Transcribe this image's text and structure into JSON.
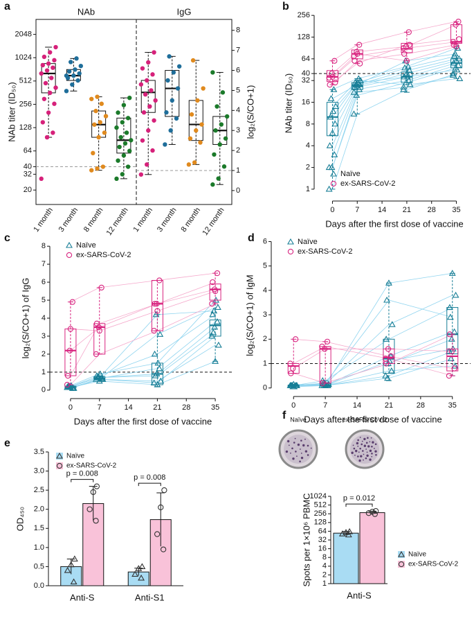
{
  "chart_data": [
    {
      "type": "box",
      "panel_label": "a",
      "categories": [
        "1 month",
        "3 month",
        "8 month",
        "12 month"
      ],
      "y_label": "NAb titer (ID₅₀)",
      "y2_label": "log₂(S/CO+1)",
      "log_scale": true,
      "ylim": [
        16,
        2600
      ],
      "yticks": [
        20,
        32,
        40,
        64,
        128,
        256,
        512,
        1024,
        2048
      ],
      "y2lim": [
        -0.35,
        8.2
      ],
      "y2ticks": [
        0,
        1,
        2,
        3,
        4,
        5,
        6,
        7,
        8
      ],
      "groups": [
        {
          "name": "NAb",
          "axis": "y",
          "reference_line": 40,
          "series": [
            {
              "name": "1 month",
              "color": "#d6217a",
              "values": [
                28,
                96,
                110,
                150,
                200,
                260,
                300,
                360,
                420,
                480,
                560,
                640,
                700,
                760,
                820,
                860,
                950,
                1050,
                1200,
                1400
              ],
              "box": [
                96,
                360,
                640,
                860,
                1400
              ]
            },
            {
              "name": "3 month",
              "color": "#1f6e9a",
              "values": [
                380,
                460,
                520,
                560,
                600,
                640,
                680,
                720,
                800,
                900,
                1000,
                600
              ],
              "box": [
                380,
                520,
                600,
                720,
                1000
              ]
            },
            {
              "name": "8 month",
              "color": "#e08a1e",
              "values": [
                36,
                38,
                40,
                60,
                96,
                110,
                140,
                150,
                180,
                210,
                260,
                300,
                320
              ],
              "box": [
                36,
                96,
                140,
                210,
                320
              ]
            },
            {
              "name": "12 month",
              "color": "#1b7a2a",
              "values": [
                28,
                32,
                40,
                48,
                56,
                64,
                72,
                80,
                88,
                96,
                110,
                128,
                150,
                170,
                200,
                250,
                310
              ],
              "box": [
                28,
                60,
                88,
                170,
                310
              ]
            }
          ]
        },
        {
          "name": "IgG",
          "axis": "y2",
          "reference_line": 1,
          "series": [
            {
              "name": "1 month",
              "color": "#d6217a",
              "values": [
                0.8,
                1.3,
                2.0,
                2.5,
                3.0,
                3.5,
                3.9,
                4.2,
                4.5,
                4.8,
                5.0,
                5.3,
                5.5,
                5.8,
                6.1,
                6.4,
                6.9
              ],
              "box": [
                0.8,
                3.9,
                4.9,
                5.5,
                6.9
              ]
            },
            {
              "name": "3 month",
              "color": "#1f6e9a",
              "values": [
                2.3,
                3.0,
                3.6,
                3.9,
                4.5,
                5.1,
                5.5,
                5.9,
                6.2,
                6.7
              ],
              "box": [
                2.3,
                3.7,
                5.1,
                6.0,
                6.7
              ]
            },
            {
              "name": "8 month",
              "color": "#e08a1e",
              "values": [
                1.3,
                1.4,
                2.4,
                2.6,
                3.0,
                3.3,
                3.8,
                4.5,
                5.1,
                6.5
              ],
              "box": [
                1.3,
                2.5,
                3.3,
                4.5,
                6.5
              ]
            },
            {
              "name": "12 month",
              "color": "#1b7a2a",
              "values": [
                0.3,
                0.6,
                1.2,
                1.8,
                2.3,
                2.6,
                3.0,
                3.3,
                3.7,
                4.2,
                4.9,
                5.9
              ],
              "box": [
                0.3,
                2.3,
                3.0,
                3.7,
                5.9
              ]
            }
          ]
        }
      ]
    },
    {
      "type": "line",
      "panel_label": "b",
      "y_label": "NAb titer (ID₅₀)",
      "x_label": "Days after the first dose of vaccine",
      "xlim": [
        -4,
        39
      ],
      "xticks": [
        0,
        7,
        14,
        21,
        28,
        35
      ],
      "x": [
        0,
        7,
        21,
        35
      ],
      "log_scale": true,
      "ylim": [
        0.8,
        300
      ],
      "yticks": [
        1,
        2,
        4,
        8,
        16,
        32,
        40,
        64,
        128,
        256
      ],
      "reference_line": 40,
      "legend": "bottom-left",
      "series": [
        {
          "name": "Naïve",
          "color": "#177e96",
          "line_color": "#8fd4ef",
          "marker": "triangle",
          "subjects": [
            [
              1,
              11,
              24,
              40
            ],
            [
              2,
              20,
              30,
              48
            ],
            [
              3,
              24,
              32,
              52
            ],
            [
              4,
              26,
              36,
              56
            ],
            [
              6,
              27,
              40,
              60
            ],
            [
              8,
              28,
              44,
              64
            ],
            [
              10,
              30,
              48,
              70
            ],
            [
              12,
              30,
              36,
              45
            ],
            [
              14,
              32,
              28,
              34
            ],
            [
              18,
              28,
              60,
              75
            ],
            [
              24,
              34,
              50,
              90
            ],
            [
              2,
              22,
              26,
              38
            ]
          ],
          "boxes": [
            [
              1,
              5.5,
              10,
              16,
              24
            ],
            [
              11,
              24,
              27,
              30,
              34
            ],
            [
              22,
              30,
              36,
              42,
              60
            ],
            [
              34,
              48,
              56,
              64,
              90
            ]
          ]
        },
        {
          "name": "ex-SARS-CoV-2",
          "color": "#d8237f",
          "line_color": "#f5a8cb",
          "marker": "circle",
          "subjects": [
            [
              35,
              70,
              90,
              110
            ],
            [
              40,
              80,
              95,
              190
            ],
            [
              60,
              100,
              150,
              210
            ],
            [
              28,
              60,
              75,
              100
            ],
            [
              36,
              75,
              60,
              95
            ],
            [
              30,
              55,
              100,
              120
            ]
          ],
          "boxes": [
            [
              28,
              31,
              36,
              44,
              60
            ],
            [
              55,
              64,
              75,
              85,
              100
            ],
            [
              60,
              78,
              88,
              105,
              150
            ],
            [
              95,
              105,
              110,
              190,
              210
            ]
          ]
        }
      ]
    },
    {
      "type": "line",
      "panel_label": "c",
      "y_label": "log₂(S/CO+1) of IgG",
      "x_label": "Days after the first dose of vaccine",
      "xlim": [
        -4,
        39
      ],
      "xticks": [
        0,
        7,
        14,
        21,
        28,
        35
      ],
      "x": [
        0,
        7,
        21,
        35
      ],
      "ylim": [
        -0.2,
        8.2
      ],
      "yticks": [
        0,
        1,
        2,
        3,
        4,
        5,
        6,
        7,
        8
      ],
      "reference_line": 1,
      "legend": "top-left",
      "series": [
        {
          "name": "Naïve",
          "color": "#177e96",
          "line_color": "#8fd4ef",
          "marker": "triangle",
          "subjects": [
            [
              0.15,
              0.6,
              0.4,
              3.0
            ],
            [
              0.2,
              0.7,
              0.9,
              3.5
            ],
            [
              0.1,
              0.65,
              1.2,
              3.8
            ],
            [
              0.2,
              0.8,
              2.0,
              4.2
            ],
            [
              0.15,
              0.5,
              0.3,
              1.6
            ],
            [
              0.1,
              0.6,
              3.1,
              4.6
            ],
            [
              0.2,
              0.7,
              0.8,
              3.2
            ],
            [
              0.25,
              0.9,
              1.5,
              5.0
            ],
            [
              0.1,
              0.6,
              0.5,
              2.5
            ],
            [
              0.2,
              0.7,
              4.2,
              4.4
            ]
          ],
          "boxes": [
            [
              0.1,
              0.12,
              0.2,
              0.22,
              0.25
            ],
            [
              0.5,
              0.6,
              0.65,
              0.75,
              0.9
            ],
            [
              0.2,
              0.3,
              0.9,
              1.5,
              4.2
            ],
            [
              1.6,
              3.0,
              3.6,
              3.9,
              5.0
            ]
          ]
        },
        {
          "name": "ex-SARS-CoV-2",
          "color": "#d8237f",
          "line_color": "#f5a8cb",
          "marker": "circle",
          "subjects": [
            [
              0.3,
              2.0,
              3.3,
              4.8
            ],
            [
              2.2,
              3.5,
              4.8,
              5.6
            ],
            [
              4.9,
              5.7,
              6.1,
              6.5
            ],
            [
              0.8,
              3.7,
              4.8,
              6.0
            ],
            [
              3.4,
              3.3,
              4.4,
              5.5
            ]
          ],
          "boxes": [
            [
              0.3,
              0.8,
              2.2,
              3.4,
              4.9
            ],
            [
              2.0,
              2.0,
              3.5,
              3.7,
              5.7
            ],
            [
              3.3,
              3.3,
              4.8,
              6.1,
              6.1
            ],
            [
              4.8,
              5.0,
              5.6,
              5.9,
              6.5
            ]
          ]
        }
      ]
    },
    {
      "type": "line",
      "panel_label": "d",
      "y_label": "log₂(S/CO+1) of IgM",
      "x_label": "Days after the first dose of vaccine",
      "xlim": [
        -4,
        39
      ],
      "xticks": [
        0,
        7,
        14,
        21,
        28,
        35
      ],
      "x": [
        0,
        7,
        21,
        35
      ],
      "ylim": [
        -0.15,
        6.1
      ],
      "yticks": [
        0,
        1,
        2,
        3,
        4,
        5,
        6
      ],
      "reference_line": 1,
      "legend": "top-left",
      "series": [
        {
          "name": "Naïve",
          "color": "#177e96",
          "line_color": "#8fd4ef",
          "marker": "triangle",
          "subjects": [
            [
              0.1,
              0.1,
              0.5,
              1.5
            ],
            [
              0.05,
              0.2,
              1.0,
              2.0
            ],
            [
              0.1,
              0.1,
              1.3,
              2.3
            ],
            [
              0.1,
              0.3,
              2.0,
              3.3
            ],
            [
              0.15,
              0.1,
              4.3,
              4.7
            ],
            [
              0.1,
              0.1,
              0.7,
              0.9
            ],
            [
              0.1,
              0.2,
              3.6,
              2.9
            ],
            [
              0.05,
              0.1,
              1.1,
              1.6
            ],
            [
              0.1,
              0.15,
              2.6,
              3.8
            ],
            [
              0.1,
              0.1,
              0.4,
              1.2
            ]
          ],
          "boxes": [
            [
              0.05,
              0.07,
              0.1,
              0.12,
              0.15
            ],
            [
              0.05,
              0.08,
              0.1,
              0.2,
              0.3
            ],
            [
              0.3,
              0.6,
              1.2,
              2.0,
              4.3
            ],
            [
              0.5,
              1.4,
              2.2,
              3.3,
              4.7
            ]
          ]
        },
        {
          "name": "ex-SARS-CoV-2",
          "color": "#d8237f",
          "line_color": "#f5a8cb",
          "marker": "circle",
          "subjects": [
            [
              1.0,
              1.7,
              1.2,
              0.5
            ],
            [
              0.8,
              1.6,
              1.6,
              1.5
            ],
            [
              2.0,
              1.9,
              1.3,
              0.8
            ],
            [
              0.6,
              0.2,
              1.0,
              2.2
            ]
          ],
          "boxes": [
            [
              0.6,
              0.6,
              0.9,
              1.0,
              2.0
            ],
            [
              0.2,
              0.2,
              1.6,
              1.7,
              1.9
            ],
            [
              1.0,
              1.0,
              1.25,
              1.6,
              1.6
            ],
            [
              0.5,
              0.7,
              1.3,
              1.6,
              2.2
            ]
          ]
        }
      ]
    },
    {
      "type": "bar",
      "panel_label": "e",
      "y_label": "OD₄₅₀",
      "categories": [
        "Anti-S",
        "Anti-S1"
      ],
      "ylim": [
        0,
        3.5
      ],
      "yticks": [
        {
          "value": 0,
          "label": "0.0"
        },
        0.5,
        {
          "value": 1,
          "label": "1.0"
        },
        1.5,
        {
          "value": 2,
          "label": "2.0"
        },
        2.5,
        {
          "value": 3,
          "label": "3.0"
        },
        3.5
      ],
      "legend": "top-left",
      "annotations": [
        "p = 0.008",
        "p = 0.008"
      ],
      "series": [
        {
          "name": "Naïve",
          "color": "#a9dcf3",
          "marker": "triangle",
          "values": [
            0.5,
            0.36
          ],
          "errors": [
            0.2,
            0.1
          ],
          "points": [
            [
              0.1,
              0.4,
              0.55,
              0.7
            ],
            [
              0.2,
              0.3,
              0.45,
              0.5
            ]
          ]
        },
        {
          "name": "ex-SARS-CoV-2",
          "color": "#f9c2d9",
          "marker": "circle",
          "values": [
            2.15,
            1.73
          ],
          "errors": [
            0.45,
            0.7
          ],
          "points": [
            [
              1.7,
              2.0,
              2.45,
              2.6
            ],
            [
              0.95,
              1.35,
              2.05,
              2.5
            ]
          ]
        }
      ]
    },
    {
      "type": "bar",
      "panel_label": "f",
      "y_label": "Spots per 1×10⁶ PBMC",
      "categories": [
        "Anti-S"
      ],
      "log_scale": true,
      "ylim": [
        1,
        1024
      ],
      "yticks": [
        1,
        2,
        4,
        8,
        16,
        32,
        64,
        128,
        256,
        512,
        1024
      ],
      "legend": "right",
      "annotations": [
        "p = 0.012"
      ],
      "image_labels": [
        "Naïve",
        "ex-SARS-CoV-2"
      ],
      "series": [
        {
          "name": "Naïve",
          "color": "#a9dcf3",
          "marker": "triangle",
          "values": [
            55
          ],
          "errors": [
            8
          ],
          "points": [
            [
              48,
              52,
              58,
              62
            ]
          ]
        },
        {
          "name": "ex-SARS-CoV-2",
          "color": "#f9c2d9",
          "marker": "circle",
          "values": [
            280
          ],
          "errors": [
            35
          ],
          "points": [
            [
              250,
              270,
              300,
              320
            ]
          ]
        }
      ]
    }
  ]
}
